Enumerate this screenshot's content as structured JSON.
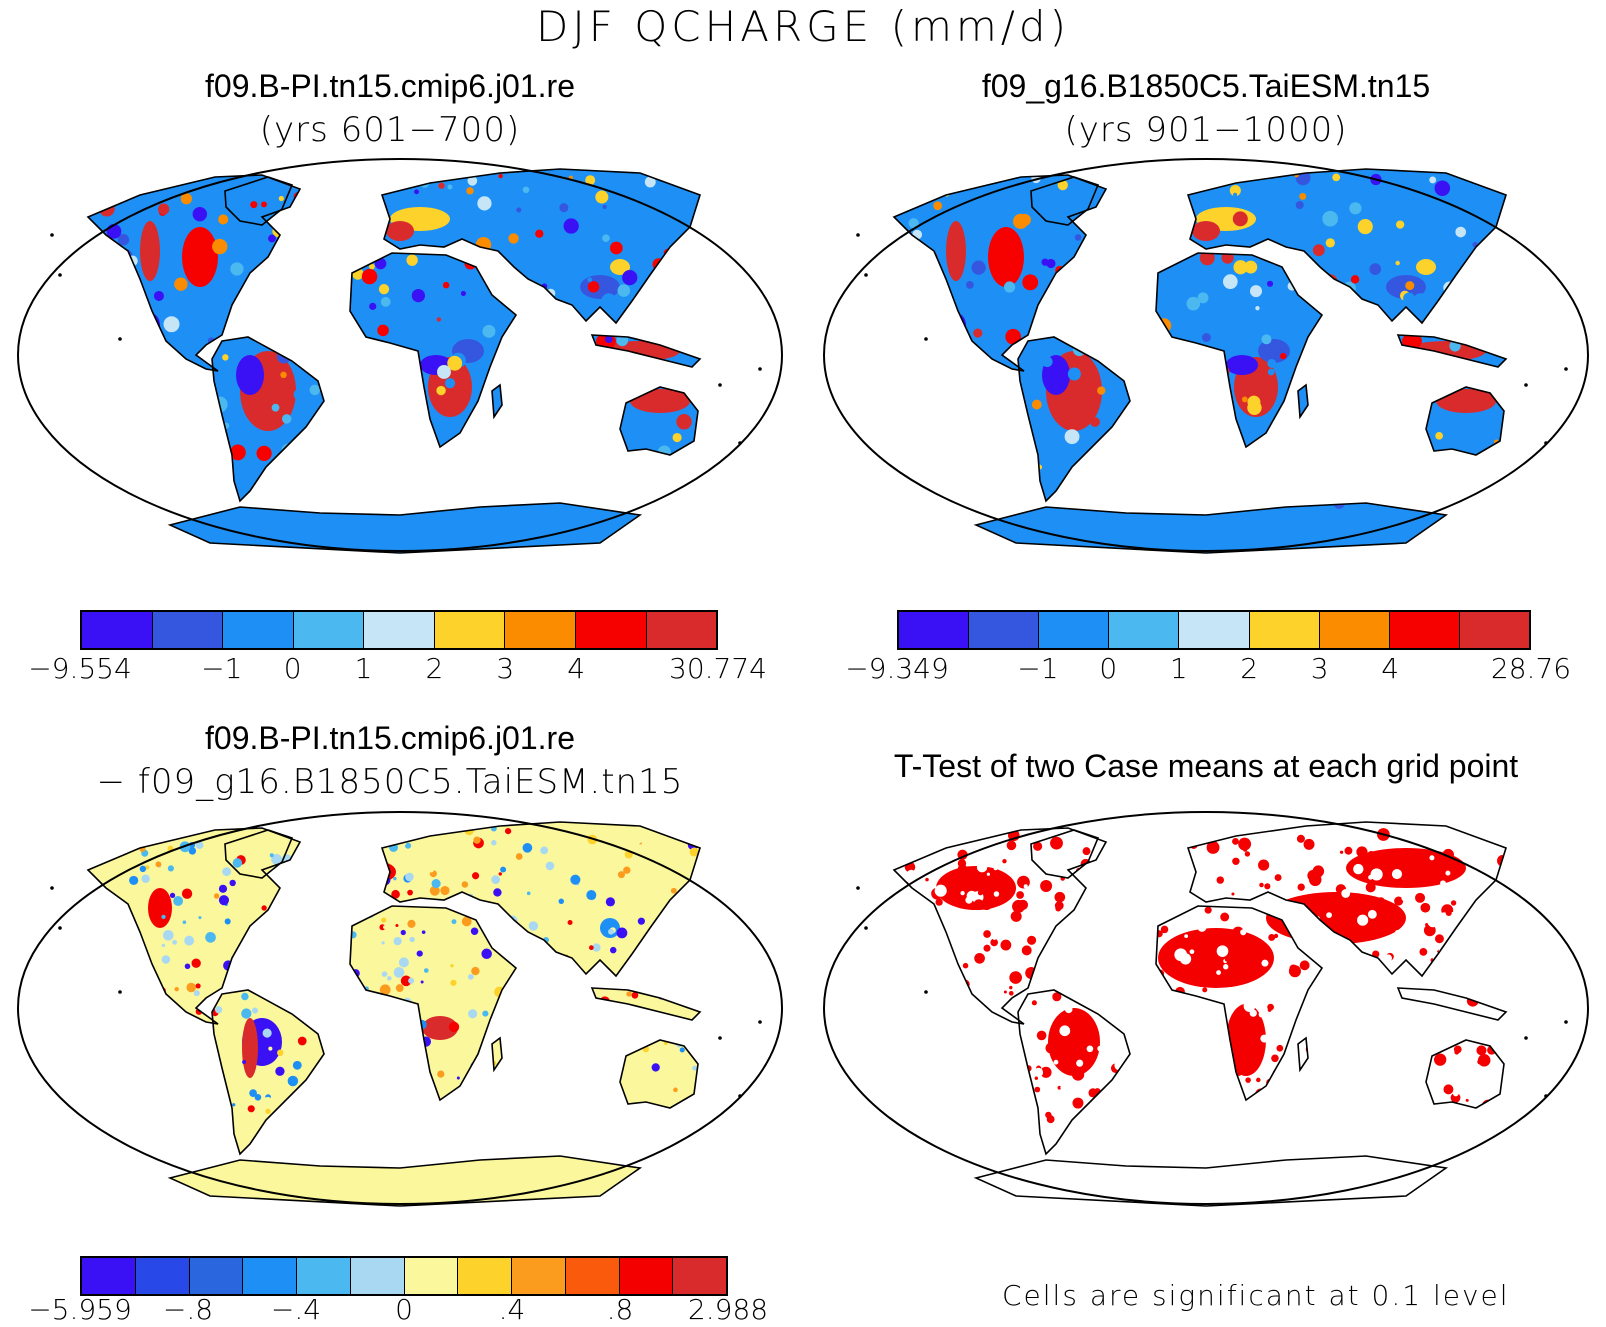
{
  "title": "DJF QCHARGE (mm/d)",
  "panels": [
    {
      "id": "case1",
      "title": "f09.B-PI.tn15.cmip6.j01.re",
      "subtitle": "(yrs 601−700)",
      "colorbar": {
        "colors": [
          "#3a10f5",
          "#3557e0",
          "#1e90f5",
          "#4cb8f0",
          "#c6e6f7",
          "#fdd22a",
          "#fb8c00",
          "#f70000",
          "#d92b2b"
        ],
        "labels": [
          "−9.554",
          "−1",
          "0",
          "1",
          "2",
          "3",
          "4",
          "30.774"
        ]
      }
    },
    {
      "id": "case2",
      "title": "f09_g16.B1850C5.TaiESM.tn15",
      "subtitle": "(yrs 901−1000)",
      "colorbar": {
        "colors": [
          "#3a10f5",
          "#3557e0",
          "#1e90f5",
          "#4cb8f0",
          "#c6e6f7",
          "#fdd22a",
          "#fb8c00",
          "#f70000",
          "#d92b2b"
        ],
        "labels": [
          "−9.349",
          "−1",
          "0",
          "1",
          "2",
          "3",
          "4",
          "28.76"
        ]
      }
    },
    {
      "id": "diff",
      "title": "f09.B-PI.tn15.cmip6.j01.re",
      "subtitle": "− f09_g16.B1850C5.TaiESM.tn15",
      "colorbar": {
        "colors": [
          "#3a10f5",
          "#2848e8",
          "#2a66dd",
          "#1e90f5",
          "#4cb8f0",
          "#a9d9f2",
          "#fbf79c",
          "#fdd22a",
          "#fb9c1e",
          "#fa5a0c",
          "#f50000",
          "#d92b2b"
        ],
        "labels": [
          "−5.959",
          "−.8",
          "−.4",
          "0",
          ".4",
          ".8",
          "2.988"
        ]
      }
    },
    {
      "id": "ttest",
      "title": "T-Test of two Case means at each grid point",
      "note": "Cells are significant at 0.1 level",
      "color": "#f50000"
    }
  ]
}
